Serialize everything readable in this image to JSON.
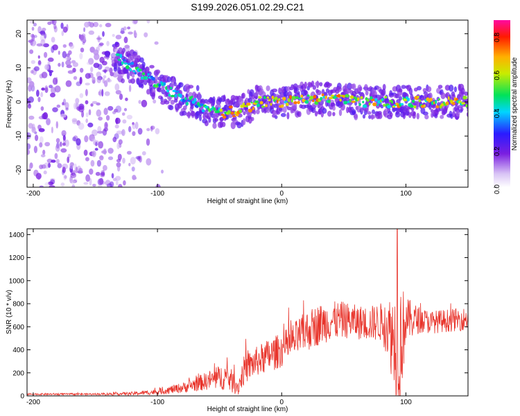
{
  "title": "S199.2026.051.02.29.C21",
  "colors": {
    "snr_line": "#e8332a",
    "axis": "#000000",
    "background": "#ffffff"
  },
  "chart_data": [
    {
      "type": "heatmap",
      "title": "S199.2026.051.02.29.C21",
      "xlabel": "Height of straight line (km)",
      "ylabel": "Frequency (Hz)",
      "xlim": [
        -205,
        150
      ],
      "ylim": [
        -25,
        24
      ],
      "xticks": [
        -200,
        -100,
        0,
        100
      ],
      "yticks": [
        -20,
        -10,
        0,
        10,
        20
      ],
      "colorbar": {
        "label": "Normalized spectral amplitude",
        "range": [
          0.0,
          0.88
        ],
        "ticks": [
          0.0,
          0.2,
          0.4,
          0.6,
          0.8
        ],
        "colormap": "rainbow (white-violet-blue-cyan-green-yellow-red-magenta)"
      },
      "ridge": {
        "description": "dominant frequency ridge",
        "x": [
          -130,
          -120,
          -110,
          -100,
          -90,
          -80,
          -70,
          -60,
          -50,
          -40,
          -30,
          -20,
          -10,
          0,
          20,
          40,
          60,
          80,
          100,
          120,
          140,
          150
        ],
        "y": [
          13,
          10,
          8,
          5,
          3,
          1,
          0,
          -2,
          -3,
          -3,
          -2,
          0,
          0,
          0,
          1,
          1,
          0,
          0,
          0,
          0,
          0,
          0
        ]
      },
      "noise_region": {
        "x": [
          -205,
          -110
        ],
        "y": [
          -25,
          24
        ]
      }
    },
    {
      "type": "line",
      "xlabel": "Height of straight line (km)",
      "ylabel": "SNR (10 * v/v)",
      "xlim": [
        -205,
        150
      ],
      "ylim": [
        0,
        1450
      ],
      "xticks": [
        -200,
        -100,
        0,
        100
      ],
      "yticks": [
        0,
        200,
        400,
        600,
        800,
        1000,
        1200,
        1400
      ],
      "envelope": {
        "x": [
          -205,
          -150,
          -120,
          -100,
          -80,
          -60,
          -45,
          -35,
          -30,
          -20,
          -10,
          0,
          10,
          20,
          30,
          40,
          50,
          60,
          70,
          80,
          85,
          90,
          95,
          100,
          110,
          120,
          130,
          140,
          150
        ],
        "mean": [
          15,
          15,
          20,
          35,
          70,
          130,
          170,
          80,
          230,
          300,
          350,
          400,
          480,
          560,
          620,
          650,
          660,
          640,
          630,
          640,
          600,
          500,
          450,
          660,
          660,
          640,
          650,
          660,
          670
        ],
        "amp": [
          8,
          8,
          15,
          25,
          45,
          80,
          120,
          80,
          130,
          130,
          150,
          150,
          160,
          180,
          180,
          170,
          160,
          150,
          150,
          170,
          250,
          420,
          600,
          200,
          120,
          100,
          100,
          100,
          100
        ]
      },
      "peak": {
        "x": 93,
        "y": 1450
      }
    }
  ]
}
